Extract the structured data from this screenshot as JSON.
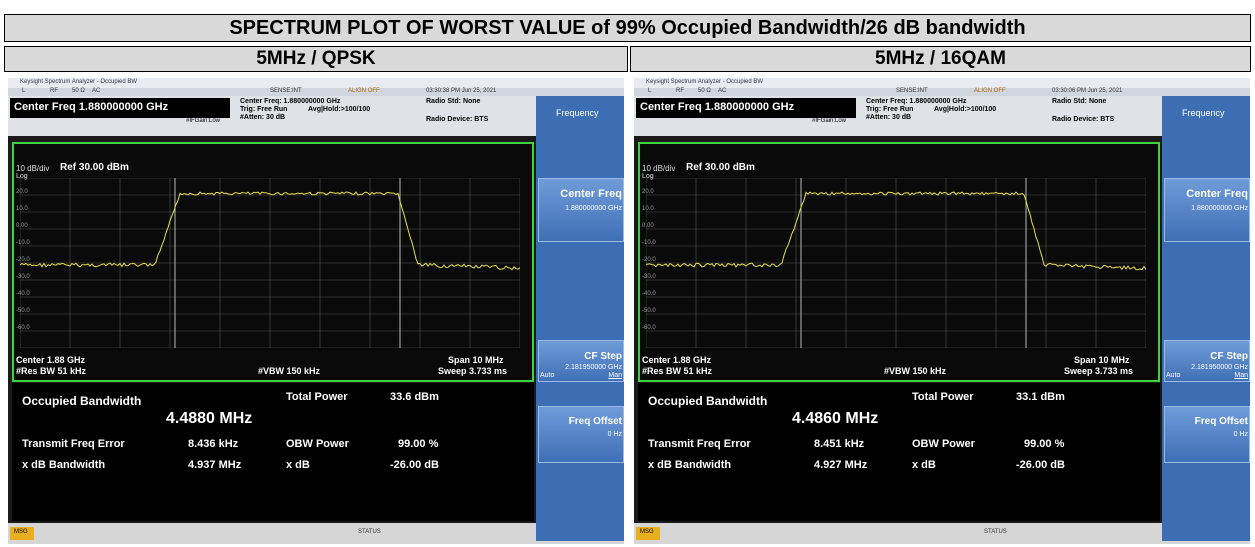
{
  "title": "SPECTRUM PLOT OF WORST VALUE of 99% Occupied Bandwidth/26 dB bandwidth",
  "panels": [
    {
      "header": "5MHz / QPSK",
      "screen": {
        "window_title": "Keysight Spectrum Analyzer - Occupied BW",
        "st_l": "L",
        "st_rf": "RF",
        "st_ohm": "50 Ω",
        "st_ac": "AC",
        "st_sense": "SENSE:INT",
        "st_align": "ALIGN OFF",
        "st_time": "03:30:38 PM Jun 25, 2021",
        "center_freq": "Center Freq 1.880000000 GHz",
        "cf_info": "Center Freq: 1.880000000 GHz",
        "trig": "Trig: Free Run",
        "avg": "Avg|Hold:>100/100",
        "atten": "#Atten: 30 dB",
        "ifgain": "#IFGain:Low",
        "radio_std": "Radio Std: None",
        "radio_dev": "Radio Device: BTS",
        "div": "10 dB/div",
        "ref": "Ref 30.00 dBm",
        "log": "Log",
        "ylabels": [
          "20.0",
          "10.0",
          "0.00",
          "-10.0",
          "-20.0",
          "-30.0",
          "-40.0",
          "-50.0",
          "-60.0"
        ],
        "center": "Center 1.88 GHz",
        "rbw": "#Res BW 51 kHz",
        "vbw": "#VBW 150 kHz",
        "span": "Span 10 MHz",
        "sweep": "Sweep 3.733 ms",
        "obw_label": "Occupied Bandwidth",
        "obw_value": "4.4880 MHz",
        "tp_label": "Total Power",
        "tp_value": "33.6 dBm",
        "tfe_label": "Transmit Freq Error",
        "tfe_value": "8.436 kHz",
        "obwp_label": "OBW Power",
        "obwp_value": "99.00 %",
        "xdbbw_label": "x dB Bandwidth",
        "xdbbw_value": "4.937 MHz",
        "xdb_label": "x dB",
        "xdb_value": "-26.00 dB",
        "sk_title": "Frequency",
        "sk_cf": "Center Freq",
        "sk_cf_val": "1.880000000 GHz",
        "sk_step": "CF Step",
        "sk_step_val": "2.181950000 GHz",
        "sk_auto": "Auto",
        "sk_man": "Man",
        "sk_off": "Freq Offset",
        "sk_off_val": "0 Hz",
        "msg": "MSG",
        "status": "STATUS"
      }
    },
    {
      "header": "5MHz / 16QAM",
      "screen": {
        "window_title": "Keysight Spectrum Analyzer - Occupied BW",
        "st_l": "L",
        "st_rf": "RF",
        "st_ohm": "50 Ω",
        "st_ac": "AC",
        "st_sense": "SENSE:INT",
        "st_align": "ALIGN OFF",
        "st_time": "03:30:06 PM Jun 25, 2021",
        "center_freq": "Center Freq 1.880000000 GHz",
        "cf_info": "Center Freq: 1.880000000 GHz",
        "trig": "Trig: Free Run",
        "avg": "Avg|Hold:>100/100",
        "atten": "#Atten: 30 dB",
        "ifgain": "#IFGain:Low",
        "radio_std": "Radio Std: None",
        "radio_dev": "Radio Device: BTS",
        "div": "10 dB/div",
        "ref": "Ref 30.00 dBm",
        "log": "Log",
        "ylabels": [
          "20.0",
          "10.0",
          "0.00",
          "-10.0",
          "-20.0",
          "-30.0",
          "-40.0",
          "-50.0",
          "-60.0"
        ],
        "center": "Center 1.88 GHz",
        "rbw": "#Res BW 51 kHz",
        "vbw": "#VBW 150 kHz",
        "span": "Span 10 MHz",
        "sweep": "Sweep 3.733 ms",
        "obw_label": "Occupied Bandwidth",
        "obw_value": "4.4860 MHz",
        "tp_label": "Total Power",
        "tp_value": "33.1 dBm",
        "tfe_label": "Transmit Freq Error",
        "tfe_value": "8.451 kHz",
        "obwp_label": "OBW Power",
        "obwp_value": "99.00 %",
        "xdbbw_label": "x dB Bandwidth",
        "xdbbw_value": "4.927 MHz",
        "xdb_label": "x dB",
        "xdb_value": "-26.00 dB",
        "sk_title": "Frequency",
        "sk_cf": "Center Freq",
        "sk_cf_val": "1.880000000 GHz",
        "sk_step": "CF Step",
        "sk_step_val": "2.181950000 GHz",
        "sk_auto": "Auto",
        "sk_man": "Man",
        "sk_off": "Freq Offset",
        "sk_off_val": "0 Hz",
        "msg": "MSG",
        "status": "STATUS"
      }
    }
  ]
}
